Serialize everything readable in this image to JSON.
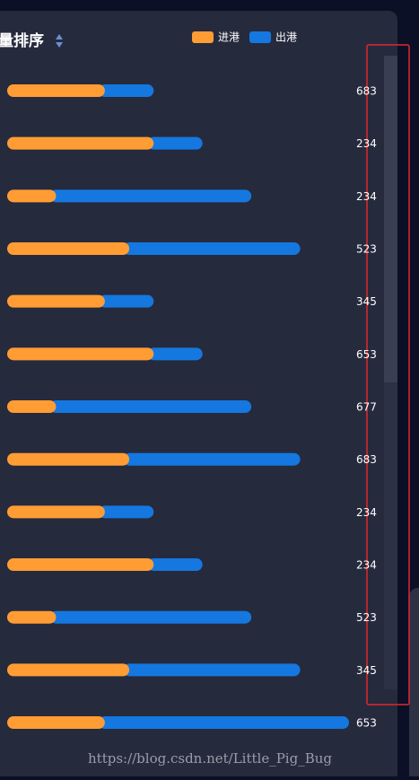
{
  "chart_data": {
    "type": "bar",
    "title": "量排序",
    "labels": [
      "683",
      "234",
      "234",
      "523",
      "345",
      "653",
      "677",
      "683",
      "234",
      "234",
      "523",
      "345",
      "653"
    ],
    "series": [
      {
        "name": "进港",
        "color": "#ff9d34",
        "values": [
          2,
          3,
          1,
          2.5,
          2,
          3,
          1,
          2.5,
          2,
          3,
          1,
          2.5,
          2
        ]
      },
      {
        "name": "出港",
        "color": "#1478e0",
        "values": [
          1,
          1,
          4,
          3.5,
          1,
          1,
          4,
          3.5,
          1,
          1,
          4,
          3.5,
          5
        ]
      }
    ],
    "xlim": [
      0,
      7
    ],
    "watermark": "https://blog.csdn.net/Little_Pig_Bug"
  }
}
